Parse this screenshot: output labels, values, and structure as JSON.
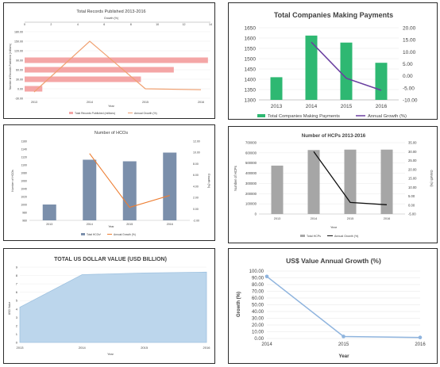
{
  "chart_data": [
    {
      "id": "records",
      "type": "bar",
      "orientation": "horizontal",
      "title": "Total Records Published 2013-2016",
      "xlabel": "Year",
      "ylabel": "Number of Records Published (millions)",
      "top_axis_label": "Growth (%)",
      "categories": [
        "2013",
        "2014",
        "2015",
        "2016"
      ],
      "left_ticks": [
        "-30.00",
        "0.00",
        "30.00",
        "60.00",
        "90.00",
        "120.00",
        "150.00",
        "180.00"
      ],
      "top_ticks": [
        "0",
        "2",
        "4",
        "6",
        "8",
        "10",
        "12",
        "14"
      ],
      "series": [
        {
          "name": "Total Records Published (millions)",
          "kind": "bar",
          "color": "#f4a6a6",
          "values": [
            14,
            92,
            118,
            145
          ]
        },
        {
          "name": "Annual Growth (%)",
          "kind": "line",
          "color": "#f0a070",
          "values": [
            -10,
            150,
            0,
            -3
          ]
        }
      ],
      "legend": "bottom"
    },
    {
      "id": "companies",
      "type": "bar",
      "title": "Total Companies Making Payments",
      "categories": [
        "2013",
        "2014",
        "2015",
        "2016"
      ],
      "ylim": [
        1300,
        1650
      ],
      "y2lim": [
        -10,
        20
      ],
      "left_ticks": [
        "1300",
        "1350",
        "1400",
        "1450",
        "1500",
        "1550",
        "1600",
        "1650"
      ],
      "right_ticks": [
        "-10.00",
        "-5.00",
        "0.00",
        "5.00",
        "10.00",
        "15.00",
        "20.00"
      ],
      "series": [
        {
          "name": "Total Companies Making Payments",
          "kind": "bar",
          "color": "#2eb872",
          "values": [
            1410,
            1612,
            1578,
            1480
          ]
        },
        {
          "name": "Annual Growth (%)",
          "kind": "line",
          "color": "#6a3fa0",
          "values": [
            null,
            14,
            -1,
            -6
          ]
        }
      ],
      "legend": "bottom"
    },
    {
      "id": "hcos",
      "type": "bar",
      "title": "Number of HCOs",
      "xlabel": "Year",
      "ylabel": "Number of HCOs",
      "y2label": "Growth (%)",
      "categories": [
        "2013",
        "2014",
        "2015",
        "2016"
      ],
      "ylim": [
        960,
        1160
      ],
      "y2lim": [
        -2,
        12
      ],
      "left_ticks": [
        "960",
        "980",
        "1000",
        "1020",
        "1040",
        "1060",
        "1080",
        "1100",
        "1120",
        "1140",
        "1160"
      ],
      "right_ticks": [
        "-2.00",
        "0.00",
        "2.00",
        "4.00",
        "6.00",
        "8.00",
        "10.00",
        "12.00"
      ],
      "series": [
        {
          "name": "Total HCOs*",
          "kind": "bar",
          "color": "#7b8fab",
          "values": [
            1000,
            1113,
            1109,
            1131
          ]
        },
        {
          "name": "Annual Growth (%)",
          "kind": "line",
          "color": "#ed7d31",
          "values": [
            null,
            9.8,
            0.3,
            2.4
          ]
        }
      ],
      "legend": "bottom"
    },
    {
      "id": "hcps",
      "type": "bar",
      "title": "Number of HCPs 2013-2016",
      "xlabel": "Year",
      "ylabel": "Number of HCPs",
      "y2label": "Growth (%)",
      "categories": [
        "2013",
        "2014",
        "2015",
        "2016"
      ],
      "ylim": [
        0,
        700000
      ],
      "y2lim": [
        -5,
        35
      ],
      "left_ticks": [
        "0",
        "100000",
        "200000",
        "300000",
        "400000",
        "500000",
        "600000",
        "700000"
      ],
      "right_ticks": [
        "-5.00",
        "0.00",
        "5.00",
        "10.00",
        "15.00",
        "20.00",
        "25.00",
        "30.00",
        "35.00"
      ],
      "series": [
        {
          "name": "Total HCPs",
          "kind": "bar",
          "color": "#a6a6a6",
          "values": [
            475000,
            628000,
            632000,
            632000
          ]
        },
        {
          "name": "Annual Growth (%)",
          "kind": "line",
          "color": "#111111",
          "values": [
            null,
            30,
            1.5,
            0.2
          ]
        }
      ],
      "legend": "bottom"
    },
    {
      "id": "usd",
      "type": "area",
      "title": "TOTAL US DOLLAR VALUE (USD BILLION)",
      "xlabel": "Year",
      "ylabel": "USD Value",
      "categories": [
        "2013",
        "2014",
        "2015",
        "2016"
      ],
      "ylim": [
        0,
        9
      ],
      "left_ticks": [
        "0",
        "1",
        "2",
        "3",
        "4",
        "5",
        "6",
        "7",
        "8",
        "9"
      ],
      "series": [
        {
          "kind": "area",
          "color": "#bcd6ec",
          "stroke": "#9fc2e0",
          "values": [
            4.2,
            8.1,
            8.3,
            8.4
          ]
        }
      ]
    },
    {
      "id": "usdgrowth",
      "type": "line",
      "title": "US$ Value Annual Growth (%)",
      "xlabel": "Year",
      "ylabel": "Growth (%)",
      "categories": [
        "2014",
        "2015",
        "2016"
      ],
      "ylim": [
        0,
        100
      ],
      "left_ticks": [
        "0.00",
        "10.00",
        "20.00",
        "30.00",
        "40.00",
        "50.00",
        "60.00",
        "70.00",
        "80.00",
        "90.00",
        "100.00"
      ],
      "series": [
        {
          "kind": "line",
          "color": "#8fb4de",
          "values": [
            92,
            3,
            1.5
          ]
        }
      ]
    }
  ]
}
